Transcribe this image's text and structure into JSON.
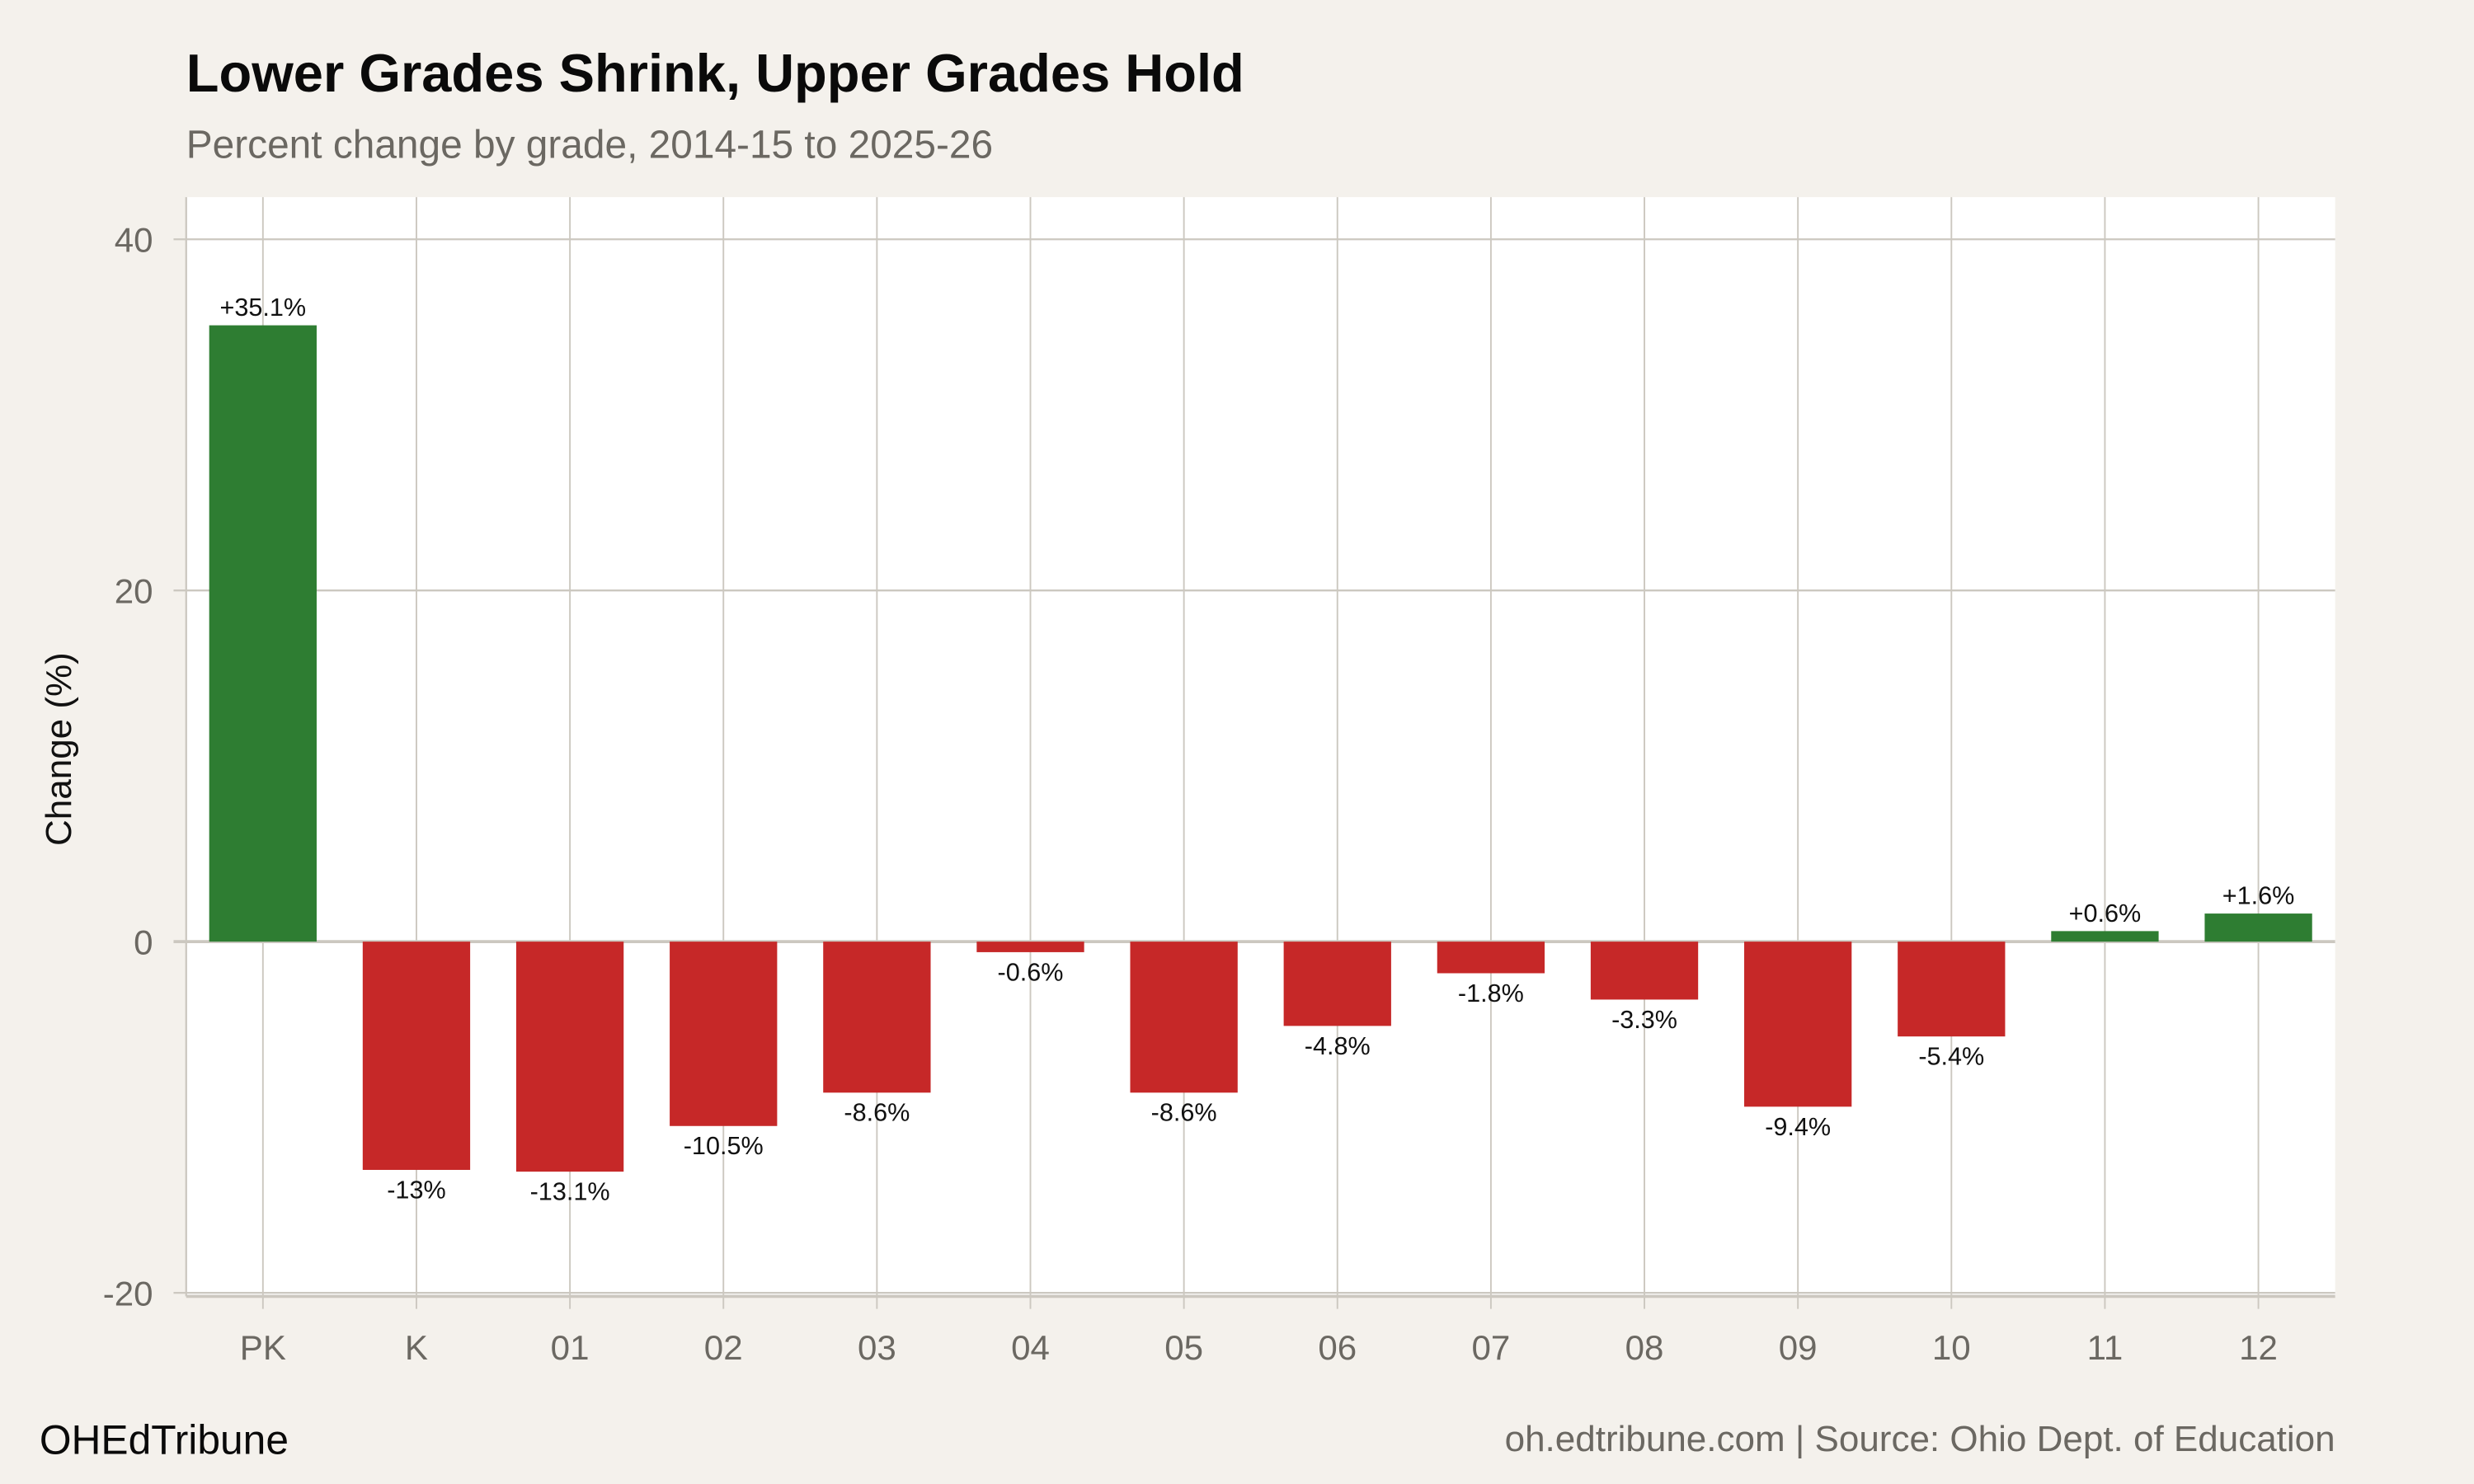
{
  "title": "Lower Grades Shrink, Upper Grades Hold",
  "subtitle": "Percent change by grade, 2014-15 to 2025-26",
  "footer": {
    "brand": "OHEdTribune",
    "source": "oh.edtribune.com | Source: Ohio Dept. of Education"
  },
  "colors": {
    "positive": "#2e7d32",
    "negative": "#c62828",
    "background": "#f4f1ec",
    "panel": "#ffffff",
    "grid": "#ccc8c0"
  },
  "chart_data": {
    "type": "bar",
    "title": "Lower Grades Shrink, Upper Grades Hold",
    "subtitle": "Percent change by grade, 2014-15 to 2025-26",
    "xlabel": "",
    "ylabel": "Change (%)",
    "ylim": [
      -20.2,
      42.4
    ],
    "yticks": [
      -20,
      0,
      20,
      40
    ],
    "grid": true,
    "categories": [
      "PK",
      "K",
      "01",
      "02",
      "03",
      "04",
      "05",
      "06",
      "07",
      "08",
      "09",
      "10",
      "11",
      "12"
    ],
    "values": [
      35.1,
      -13,
      -13.1,
      -10.5,
      -8.6,
      -0.6,
      -8.6,
      -4.8,
      -1.8,
      -3.3,
      -9.4,
      -5.4,
      0.6,
      1.6
    ],
    "data_labels": [
      "+35.1%",
      "-13%",
      "-13.1%",
      "-10.5%",
      "-8.6%",
      "-0.6%",
      "-8.6%",
      "-4.8%",
      "-1.8%",
      "-3.3%",
      "-9.4%",
      "-5.4%",
      "+0.6%",
      "+1.6%"
    ]
  }
}
